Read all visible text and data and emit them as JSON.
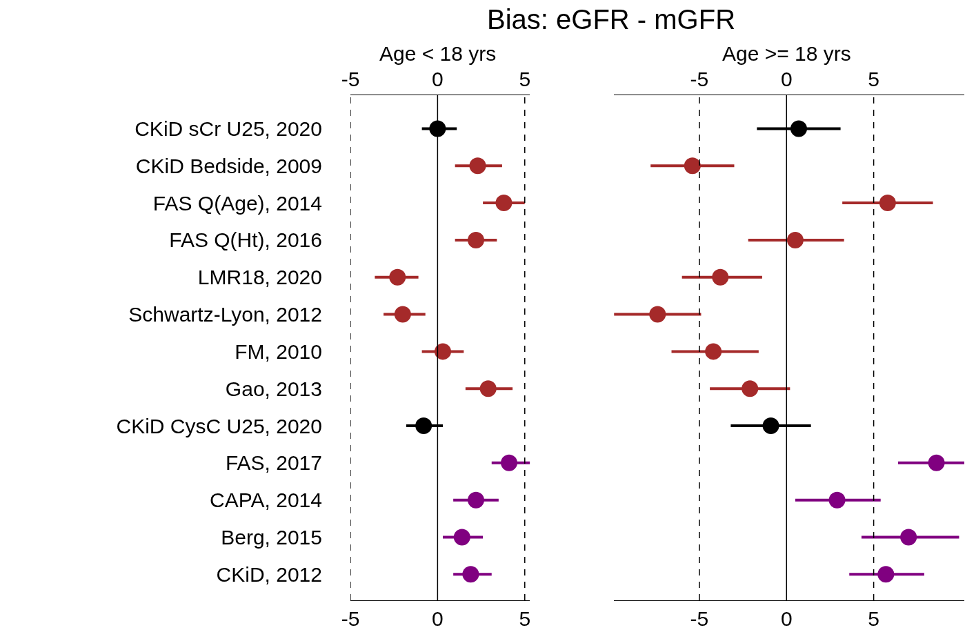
{
  "chart_data": [
    {
      "type": "scatter",
      "title": "Bias: eGFR - mGFR",
      "subtitle": "Age < 18 yrs",
      "orientation": "horizontal",
      "marker": "circle",
      "categories": [
        "CKiD sCr U25, 2020",
        "CKiD Bedside, 2009",
        "FAS Q(Age), 2014",
        "FAS Q(Ht), 2016",
        "LMR18, 2020",
        "Schwartz-Lyon, 2012",
        "FM, 2010",
        "Gao, 2013",
        "CKiD CysC U25, 2020",
        "FAS, 2017",
        "CAPA, 2014",
        "Berg, 2015",
        "CKiD, 2012"
      ],
      "values": [
        0,
        2.3,
        3.8,
        2.2,
        -2.3,
        -2.0,
        0.3,
        2.9,
        -0.8,
        4.1,
        2.2,
        1.4,
        1.9
      ],
      "errors": [
        [
          -0.9,
          1.1
        ],
        [
          1.0,
          3.7
        ],
        [
          2.6,
          5.0
        ],
        [
          1.0,
          3.4
        ],
        [
          -3.6,
          -1.1
        ],
        [
          -3.1,
          -0.7
        ],
        [
          -0.9,
          1.5
        ],
        [
          1.6,
          4.3
        ],
        [
          -1.8,
          0.3
        ],
        [
          3.1,
          5.3
        ],
        [
          0.9,
          3.5
        ],
        [
          0.3,
          2.6
        ],
        [
          0.9,
          3.1
        ]
      ],
      "colors": [
        "#000000",
        "#a52a2a",
        "#a52a2a",
        "#a52a2a",
        "#a52a2a",
        "#a52a2a",
        "#a52a2a",
        "#a52a2a",
        "#000000",
        "#800080",
        "#800080",
        "#800080",
        "#800080"
      ],
      "xlim": [
        -5,
        5.3
      ],
      "xticks": [
        -5,
        0,
        5
      ],
      "x2lim": [
        -5,
        5.3
      ],
      "x2ticks": [
        -5,
        0,
        5
      ],
      "ref_lines": [
        {
          "axis": "x",
          "value": -5,
          "color": "#000000",
          "line_style": "dashed"
        },
        {
          "axis": "x",
          "value": 0,
          "color": "#000000",
          "line_style": "solid"
        },
        {
          "axis": "x",
          "value": 5,
          "color": "#000000",
          "line_style": "dashed"
        }
      ],
      "legend": false
    },
    {
      "type": "scatter",
      "subtitle": "Age >= 18 yrs",
      "orientation": "horizontal",
      "marker": "circle",
      "tick_labels": "x",
      "categories": [
        null,
        null,
        null,
        null,
        null,
        null,
        null,
        null,
        null,
        null,
        null,
        null,
        null
      ],
      "values": [
        0.7,
        -5.4,
        5.8,
        0.5,
        -3.8,
        -7.4,
        -4.2,
        -2.1,
        -0.9,
        8.6,
        2.9,
        7.0,
        5.7
      ],
      "errors": [
        [
          -1.7,
          3.1
        ],
        [
          -7.8,
          -3.0
        ],
        [
          3.2,
          8.4
        ],
        [
          -2.2,
          3.3
        ],
        [
          -6.0,
          -1.4
        ],
        [
          -9.9,
          -4.9
        ],
        [
          -6.6,
          -1.6
        ],
        [
          -4.4,
          0.2
        ],
        [
          -3.2,
          1.4
        ],
        [
          6.4,
          10.2
        ],
        [
          0.5,
          5.4
        ],
        [
          4.3,
          9.9
        ],
        [
          3.6,
          7.9
        ]
      ],
      "colors": [
        "#000000",
        "#a52a2a",
        "#a52a2a",
        "#a52a2a",
        "#a52a2a",
        "#a52a2a",
        "#a52a2a",
        "#a52a2a",
        "#000000",
        "#800080",
        "#800080",
        "#800080",
        "#800080"
      ],
      "xlim": [
        -9.9,
        10.2
      ],
      "xticks": [
        -5,
        0,
        5
      ],
      "x2lim": [
        -9.9,
        10.2
      ],
      "x2ticks": [
        -5,
        0,
        5
      ],
      "ref_lines": [
        {
          "axis": "x",
          "value": -5,
          "color": "#000000",
          "line_style": "dashed"
        },
        {
          "axis": "x",
          "value": 0,
          "color": "#000000",
          "line_style": "solid"
        },
        {
          "axis": "x",
          "value": 5,
          "color": "#000000",
          "line_style": "dashed"
        }
      ],
      "legend": false
    }
  ]
}
